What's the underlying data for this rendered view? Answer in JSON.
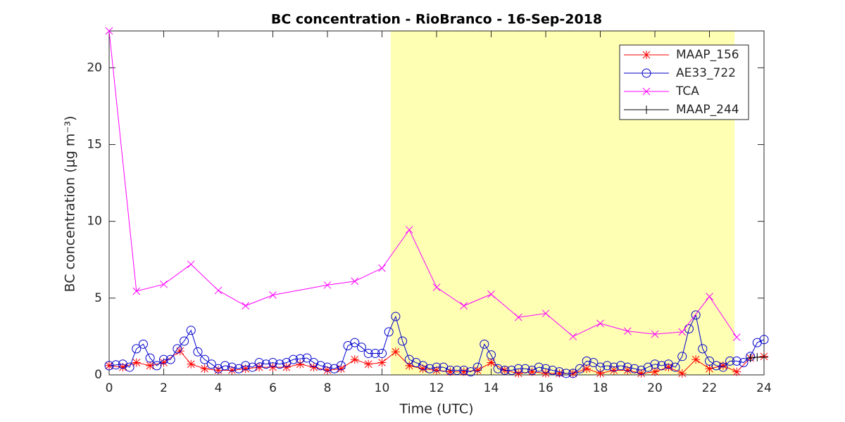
{
  "chart_data": {
    "type": "line",
    "title": "BC concentration  - RioBranco - 16-Sep-2018",
    "xlabel": "Time (UTC)",
    "ylabel": "BC concentration (μg m⁻³)",
    "xlim": [
      0,
      24
    ],
    "ylim": [
      0,
      22.4
    ],
    "xticks": [
      0,
      2,
      4,
      6,
      8,
      10,
      12,
      14,
      16,
      18,
      20,
      22,
      24
    ],
    "yticks": [
      0,
      5,
      10,
      15,
      20
    ],
    "highlight_x": [
      10.32,
      22.92
    ],
    "highlight_color": "#ffffb3",
    "legend": "upper right",
    "series": [
      {
        "name": "MAAP_156",
        "color": "#ff0000",
        "marker": "*",
        "x": [
          0,
          0.5,
          1,
          1.5,
          2,
          2.6,
          3,
          3.5,
          4,
          4.5,
          5,
          5.5,
          6,
          6.5,
          7,
          7.5,
          8,
          8.5,
          9,
          9.5,
          10,
          10.5,
          11,
          11.5,
          12,
          12.5,
          13,
          13.5,
          14,
          14.5,
          15,
          15.5,
          16,
          16.5,
          17,
          17.5,
          18,
          18.5,
          19,
          19.5,
          20,
          20.5,
          21,
          21.5,
          22,
          22.5,
          23,
          23.5,
          24
        ],
        "values": [
          0.6,
          0.5,
          0.8,
          0.6,
          0.8,
          1.55,
          0.7,
          0.4,
          0.3,
          0.3,
          0.4,
          0.5,
          0.5,
          0.5,
          0.7,
          0.5,
          0.3,
          0.4,
          1.0,
          0.7,
          0.8,
          1.5,
          0.6,
          0.4,
          0.3,
          0.2,
          0.2,
          0.3,
          0.8,
          0.3,
          0.1,
          0.2,
          0.1,
          0.1,
          0.1,
          0.4,
          0.1,
          0.3,
          0.3,
          0.1,
          0.2,
          0.5,
          0.1,
          1.0,
          0.4,
          0.6,
          0.2,
          1.1,
          1.2
        ]
      },
      {
        "name": "AE33_722",
        "color": "#0000cc",
        "marker": "o",
        "x": [
          0,
          0.25,
          0.5,
          0.75,
          1,
          1.25,
          1.5,
          1.75,
          2,
          2.25,
          2.5,
          2.75,
          3,
          3.25,
          3.5,
          3.75,
          4,
          4.25,
          4.5,
          4.75,
          5,
          5.25,
          5.5,
          5.75,
          6,
          6.25,
          6.5,
          6.75,
          7,
          7.25,
          7.5,
          7.75,
          8,
          8.25,
          8.5,
          8.75,
          9,
          9.25,
          9.5,
          9.75,
          10,
          10.25,
          10.5,
          10.75,
          11,
          11.25,
          11.5,
          11.75,
          12,
          12.25,
          12.5,
          12.75,
          13,
          13.25,
          13.5,
          13.75,
          14,
          14.25,
          14.5,
          14.75,
          15,
          15.25,
          15.5,
          15.75,
          16,
          16.25,
          16.5,
          16.75,
          17,
          17.25,
          17.5,
          17.75,
          18,
          18.25,
          18.5,
          18.75,
          19,
          19.25,
          19.5,
          19.75,
          20,
          20.25,
          20.5,
          20.75,
          21,
          21.25,
          21.5,
          21.75,
          22,
          22.25,
          22.5,
          22.75,
          23,
          23.25,
          23.5,
          23.75,
          24
        ],
        "values": [
          0.6,
          0.65,
          0.7,
          0.5,
          1.7,
          2.0,
          1.1,
          0.6,
          1.0,
          1.0,
          1.7,
          2.2,
          2.9,
          1.5,
          1.0,
          0.7,
          0.4,
          0.6,
          0.5,
          0.4,
          0.6,
          0.5,
          0.8,
          0.7,
          0.8,
          0.7,
          0.8,
          1.0,
          1.05,
          1.1,
          0.8,
          0.6,
          0.5,
          0.4,
          0.6,
          1.9,
          2.1,
          1.8,
          1.4,
          1.4,
          1.4,
          2.8,
          3.8,
          2.2,
          1.0,
          0.8,
          0.6,
          0.4,
          0.5,
          0.5,
          0.3,
          0.3,
          0.3,
          0.2,
          0.5,
          2.0,
          1.3,
          0.4,
          0.3,
          0.3,
          0.4,
          0.4,
          0.3,
          0.5,
          0.4,
          0.3,
          0.2,
          0.1,
          0.1,
          0.4,
          0.9,
          0.8,
          0.5,
          0.6,
          0.5,
          0.6,
          0.5,
          0.4,
          0.3,
          0.5,
          0.7,
          0.6,
          0.7,
          0.5,
          1.2,
          3.0,
          3.9,
          1.7,
          0.9,
          0.6,
          0.5,
          0.9,
          0.9,
          0.8,
          1.2,
          2.1,
          2.3
        ]
      },
      {
        "name": "TCA",
        "color": "#ff00ff",
        "marker": "x",
        "x": [
          0,
          1,
          2,
          3,
          4,
          5,
          6,
          8,
          9,
          10,
          11,
          12,
          13,
          14,
          15,
          16,
          17,
          18,
          19,
          20,
          21,
          22,
          23
        ],
        "values": [
          22.4,
          5.45,
          5.9,
          7.2,
          5.5,
          4.5,
          5.2,
          5.85,
          6.1,
          6.95,
          9.45,
          5.7,
          4.5,
          5.25,
          3.75,
          4.0,
          2.5,
          3.35,
          2.85,
          2.65,
          2.8,
          5.1,
          2.45
        ]
      },
      {
        "name": "MAAP_244",
        "color": "#000000",
        "marker": "+",
        "x": [
          23.5,
          23.75,
          24
        ],
        "values": [
          1.1,
          1.15,
          1.15
        ]
      }
    ]
  }
}
